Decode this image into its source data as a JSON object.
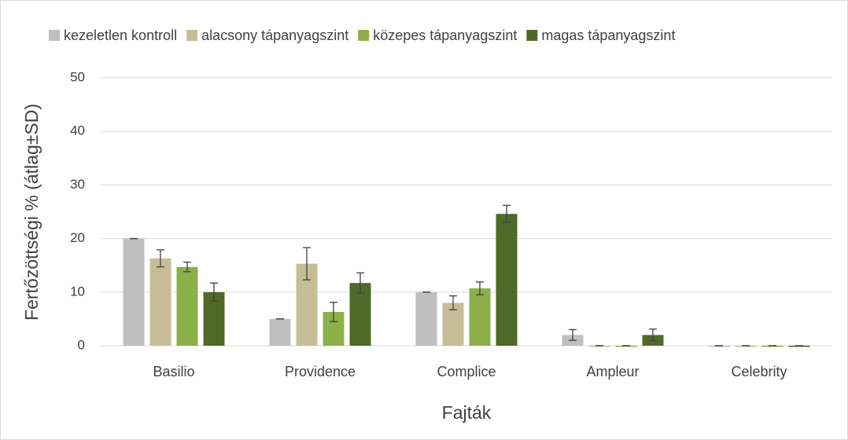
{
  "chart_data": {
    "type": "bar",
    "x_label": "Fajták",
    "y_label": "Fertőzöttségi % (átlag±SD)",
    "categories": [
      "Basilio",
      "Providence",
      "Complice",
      "Ampleur",
      "Celebrity"
    ],
    "series": [
      {
        "name": "kezeletlen kontroll",
        "color": "#bfbfbf",
        "values": [
          20,
          5,
          10,
          2,
          0
        ],
        "errors": [
          0,
          0,
          0,
          1,
          0
        ]
      },
      {
        "name": "alacsony tápanyagszint",
        "color": "#c6bd96",
        "values": [
          16.3,
          15.3,
          8,
          0,
          0
        ],
        "errors": [
          1.6,
          3,
          1.3,
          0,
          0
        ]
      },
      {
        "name": "közepes tápanyagszint",
        "color": "#8cb04a",
        "values": [
          14.7,
          6.3,
          10.7,
          0,
          0
        ],
        "errors": [
          0.9,
          1.8,
          1.2,
          0,
          0
        ]
      },
      {
        "name": "magas tápanyagszint",
        "color": "#4f6a28",
        "values": [
          10,
          11.7,
          24.6,
          2,
          0
        ],
        "errors": [
          1.7,
          1.9,
          1.6,
          1.1,
          0
        ]
      }
    ],
    "ylim": [
      0,
      50
    ],
    "yticks": [
      0,
      10,
      20,
      30,
      40,
      50
    ],
    "grid": true,
    "legend": "top"
  }
}
